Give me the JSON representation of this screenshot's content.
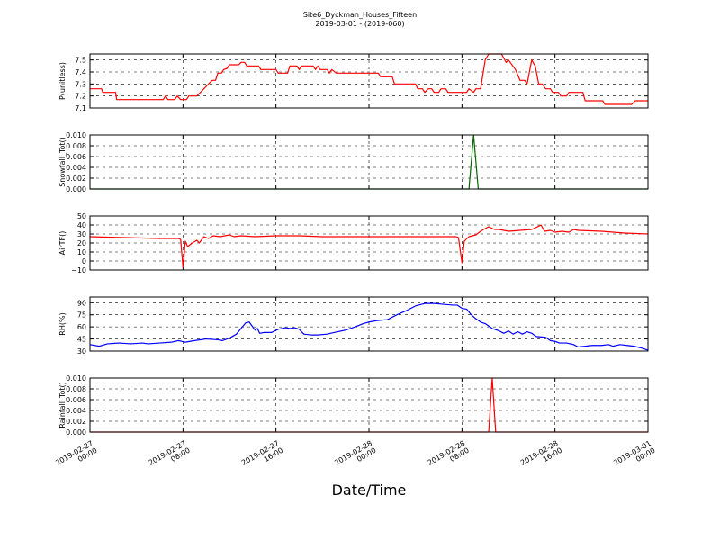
{
  "title": {
    "line1": "Site6_Dyckman_Houses_Fifteen",
    "line2": "2019-03-01 - (2019-060)"
  },
  "x_axis_title": "Date/Time",
  "chart_data": {
    "type": "line",
    "x_range": [
      "2019-02-27 00:00",
      "2019-03-01 00:00"
    ],
    "x_ticks": [
      {
        "value": 0,
        "label": "2019-02-27\n00:00"
      },
      {
        "value": 8,
        "label": "2019-02-27\n08:00"
      },
      {
        "value": 16,
        "label": "2019-02-27\n16:00"
      },
      {
        "value": 24,
        "label": "2019-02-28\n00:00"
      },
      {
        "value": 32,
        "label": "2019-02-28\n08:00"
      },
      {
        "value": 40,
        "label": "2019-02-28\n16:00"
      },
      {
        "value": 48,
        "label": "2019-03-01\n00:00"
      }
    ],
    "x_unit_note": "hours since 2019-02-27 00:00",
    "grid": true,
    "panels": [
      {
        "ylabel": "P(unitless)",
        "color": "#ff0000",
        "ylim": [
          7.1,
          7.55
        ],
        "yticks": [
          7.1,
          7.2,
          7.3,
          7.4,
          7.5
        ],
        "tick_format": "1",
        "points": [
          [
            0,
            7.26
          ],
          [
            1,
            7.26
          ],
          [
            1.1,
            7.23
          ],
          [
            2.2,
            7.23
          ],
          [
            2.3,
            7.17
          ],
          [
            6.3,
            7.17
          ],
          [
            6.5,
            7.2
          ],
          [
            6.7,
            7.17
          ],
          [
            7.3,
            7.17
          ],
          [
            7.5,
            7.2
          ],
          [
            7.8,
            7.17
          ],
          [
            8.3,
            7.17
          ],
          [
            8.5,
            7.2
          ],
          [
            9.2,
            7.2
          ],
          [
            10,
            7.28
          ],
          [
            10.5,
            7.33
          ],
          [
            10.8,
            7.33
          ],
          [
            11,
            7.39
          ],
          [
            11.3,
            7.39
          ],
          [
            11.5,
            7.42
          ],
          [
            11.8,
            7.43
          ],
          [
            12,
            7.46
          ],
          [
            12.5,
            7.46
          ],
          [
            12.8,
            7.46
          ],
          [
            13,
            7.48
          ],
          [
            13.3,
            7.48
          ],
          [
            13.5,
            7.45
          ],
          [
            14.5,
            7.45
          ],
          [
            14.7,
            7.42
          ],
          [
            16,
            7.42
          ],
          [
            16.2,
            7.39
          ],
          [
            17,
            7.39
          ],
          [
            17.2,
            7.45
          ],
          [
            17.8,
            7.45
          ],
          [
            18,
            7.42
          ],
          [
            18.2,
            7.45
          ],
          [
            19.2,
            7.45
          ],
          [
            19.4,
            7.42
          ],
          [
            19.6,
            7.45
          ],
          [
            19.8,
            7.42
          ],
          [
            20.4,
            7.42
          ],
          [
            20.6,
            7.39
          ],
          [
            20.8,
            7.42
          ],
          [
            21.2,
            7.39
          ],
          [
            24,
            7.39
          ],
          [
            24.8,
            7.39
          ],
          [
            25,
            7.36
          ],
          [
            26,
            7.36
          ],
          [
            26.2,
            7.3
          ],
          [
            28,
            7.3
          ],
          [
            28.2,
            7.26
          ],
          [
            28.6,
            7.26
          ],
          [
            28.8,
            7.23
          ],
          [
            29.1,
            7.26
          ],
          [
            29.4,
            7.26
          ],
          [
            29.6,
            7.23
          ],
          [
            30,
            7.23
          ],
          [
            30.2,
            7.26
          ],
          [
            30.6,
            7.26
          ],
          [
            30.8,
            7.23
          ],
          [
            32.4,
            7.23
          ],
          [
            32.6,
            7.26
          ],
          [
            33,
            7.23
          ],
          [
            33.2,
            7.26
          ],
          [
            33.6,
            7.26
          ],
          [
            34,
            7.5
          ],
          [
            34.3,
            7.55
          ],
          [
            35.4,
            7.55
          ],
          [
            35.8,
            7.48
          ],
          [
            36,
            7.5
          ],
          [
            36.6,
            7.42
          ],
          [
            37,
            7.33
          ],
          [
            37.4,
            7.33
          ],
          [
            37.6,
            7.3
          ],
          [
            38,
            7.5
          ],
          [
            38.3,
            7.45
          ],
          [
            38.6,
            7.3
          ],
          [
            38.9,
            7.3
          ],
          [
            39.2,
            7.26
          ],
          [
            39.6,
            7.26
          ],
          [
            39.8,
            7.23
          ],
          [
            40.3,
            7.23
          ],
          [
            40.5,
            7.2
          ],
          [
            41,
            7.2
          ],
          [
            41.2,
            7.23
          ],
          [
            42.4,
            7.23
          ],
          [
            42.6,
            7.16
          ],
          [
            44.1,
            7.16
          ],
          [
            44.3,
            7.13
          ],
          [
            46.6,
            7.13
          ],
          [
            46.9,
            7.16
          ],
          [
            48,
            7.16
          ]
        ]
      },
      {
        "ylabel": "Snowfall_Tot()",
        "color": "#006400",
        "ylim": [
          0,
          0.01
        ],
        "yticks": [
          0,
          0.002,
          0.004,
          0.006,
          0.008,
          0.01
        ],
        "tick_format": "3",
        "points": [
          [
            0,
            0
          ],
          [
            32.6,
            0
          ],
          [
            33,
            0.01
          ],
          [
            33.4,
            0
          ],
          [
            48,
            0
          ]
        ]
      },
      {
        "ylabel": "AirTF()",
        "color": "#ff0000",
        "ylim": [
          -10,
          50
        ],
        "yticks": [
          -10,
          0,
          10,
          20,
          30,
          40,
          50
        ],
        "tick_format": "0",
        "points": [
          [
            0,
            27
          ],
          [
            3,
            26
          ],
          [
            6,
            25
          ],
          [
            7.6,
            25
          ],
          [
            7.8,
            24
          ],
          [
            8,
            -7
          ],
          [
            8.2,
            22
          ],
          [
            8.4,
            16
          ],
          [
            8.8,
            20
          ],
          [
            9.2,
            23
          ],
          [
            9.4,
            20
          ],
          [
            9.8,
            27
          ],
          [
            10.2,
            25
          ],
          [
            10.6,
            28
          ],
          [
            11.2,
            27
          ],
          [
            12,
            29
          ],
          [
            12.4,
            27
          ],
          [
            13,
            28
          ],
          [
            14.2,
            27
          ],
          [
            16,
            28
          ],
          [
            18,
            28
          ],
          [
            20,
            27
          ],
          [
            24,
            27
          ],
          [
            28,
            27
          ],
          [
            31.5,
            27
          ],
          [
            31.7,
            26
          ],
          [
            32,
            -2
          ],
          [
            32.2,
            22
          ],
          [
            32.6,
            27
          ],
          [
            33.2,
            29
          ],
          [
            33.6,
            33
          ],
          [
            34,
            36
          ],
          [
            34.3,
            38
          ],
          [
            34.8,
            35
          ],
          [
            35.2,
            35
          ],
          [
            36,
            33
          ],
          [
            37,
            34
          ],
          [
            38,
            35
          ],
          [
            38.5,
            38
          ],
          [
            38.8,
            40
          ],
          [
            39.1,
            33
          ],
          [
            39.6,
            34
          ],
          [
            40,
            32
          ],
          [
            40.6,
            33
          ],
          [
            41.2,
            32
          ],
          [
            41.6,
            35
          ],
          [
            42,
            34
          ],
          [
            44,
            33
          ],
          [
            46,
            31
          ],
          [
            48,
            30
          ]
        ]
      },
      {
        "ylabel": "RH(%)",
        "color": "#0000ff",
        "ylim": [
          30,
          97
        ],
        "yticks": [
          30,
          45,
          60,
          75,
          90
        ],
        "tick_format": "0",
        "points": [
          [
            0,
            38
          ],
          [
            0.8,
            36
          ],
          [
            1.5,
            39
          ],
          [
            2.5,
            40
          ],
          [
            3.5,
            39
          ],
          [
            4.5,
            40
          ],
          [
            5,
            39
          ],
          [
            6,
            40
          ],
          [
            7,
            41
          ],
          [
            7.6,
            43
          ],
          [
            8.2,
            41
          ],
          [
            9,
            43
          ],
          [
            10,
            45
          ],
          [
            11,
            44
          ],
          [
            11.4,
            43
          ],
          [
            12,
            46
          ],
          [
            12.6,
            51
          ],
          [
            13,
            58
          ],
          [
            13.4,
            65
          ],
          [
            13.7,
            66
          ],
          [
            14,
            60
          ],
          [
            14.2,
            56
          ],
          [
            14.4,
            58
          ],
          [
            14.6,
            52
          ],
          [
            15,
            53
          ],
          [
            15.6,
            53
          ],
          [
            16.2,
            57
          ],
          [
            16.8,
            59
          ],
          [
            17.2,
            58
          ],
          [
            17.6,
            59
          ],
          [
            18,
            57
          ],
          [
            18.4,
            51
          ],
          [
            19,
            50
          ],
          [
            19.6,
            50
          ],
          [
            20.4,
            51
          ],
          [
            21,
            53
          ],
          [
            22,
            56
          ],
          [
            22.8,
            60
          ],
          [
            23.5,
            64
          ],
          [
            24,
            66
          ],
          [
            24.8,
            68
          ],
          [
            25.6,
            69
          ],
          [
            26.4,
            75
          ],
          [
            27.2,
            80
          ],
          [
            28,
            86
          ],
          [
            28.8,
            89
          ],
          [
            29.6,
            89
          ],
          [
            30.4,
            88
          ],
          [
            31.2,
            87
          ],
          [
            31.6,
            87
          ],
          [
            31.8,
            85
          ],
          [
            32,
            83
          ],
          [
            32.4,
            82
          ],
          [
            32.8,
            75
          ],
          [
            33.2,
            70
          ],
          [
            33.6,
            66
          ],
          [
            34,
            64
          ],
          [
            34.6,
            58
          ],
          [
            35.2,
            55
          ],
          [
            35.6,
            52
          ],
          [
            36,
            55
          ],
          [
            36.4,
            51
          ],
          [
            36.8,
            54
          ],
          [
            37.2,
            51
          ],
          [
            37.6,
            54
          ],
          [
            38,
            52
          ],
          [
            38.4,
            48
          ],
          [
            39.2,
            47
          ],
          [
            39.6,
            43
          ],
          [
            40,
            42
          ],
          [
            40.4,
            40
          ],
          [
            41,
            40
          ],
          [
            41.6,
            38
          ],
          [
            42,
            35
          ],
          [
            42.6,
            36
          ],
          [
            43.2,
            37
          ],
          [
            44,
            37
          ],
          [
            44.6,
            38
          ],
          [
            45,
            36
          ],
          [
            45.6,
            38
          ],
          [
            46.2,
            37
          ],
          [
            46.8,
            36
          ],
          [
            47.4,
            34
          ],
          [
            48,
            31
          ]
        ]
      },
      {
        "ylabel": "Rainfall_Tot()",
        "color": "#ff0000",
        "ylim": [
          0,
          0.01
        ],
        "yticks": [
          0,
          0.002,
          0.004,
          0.006,
          0.008,
          0.01
        ],
        "tick_format": "3",
        "points": [
          [
            0,
            0
          ],
          [
            34.3,
            0
          ],
          [
            34.6,
            0.01
          ],
          [
            34.9,
            0
          ],
          [
            48,
            0
          ]
        ]
      }
    ]
  }
}
